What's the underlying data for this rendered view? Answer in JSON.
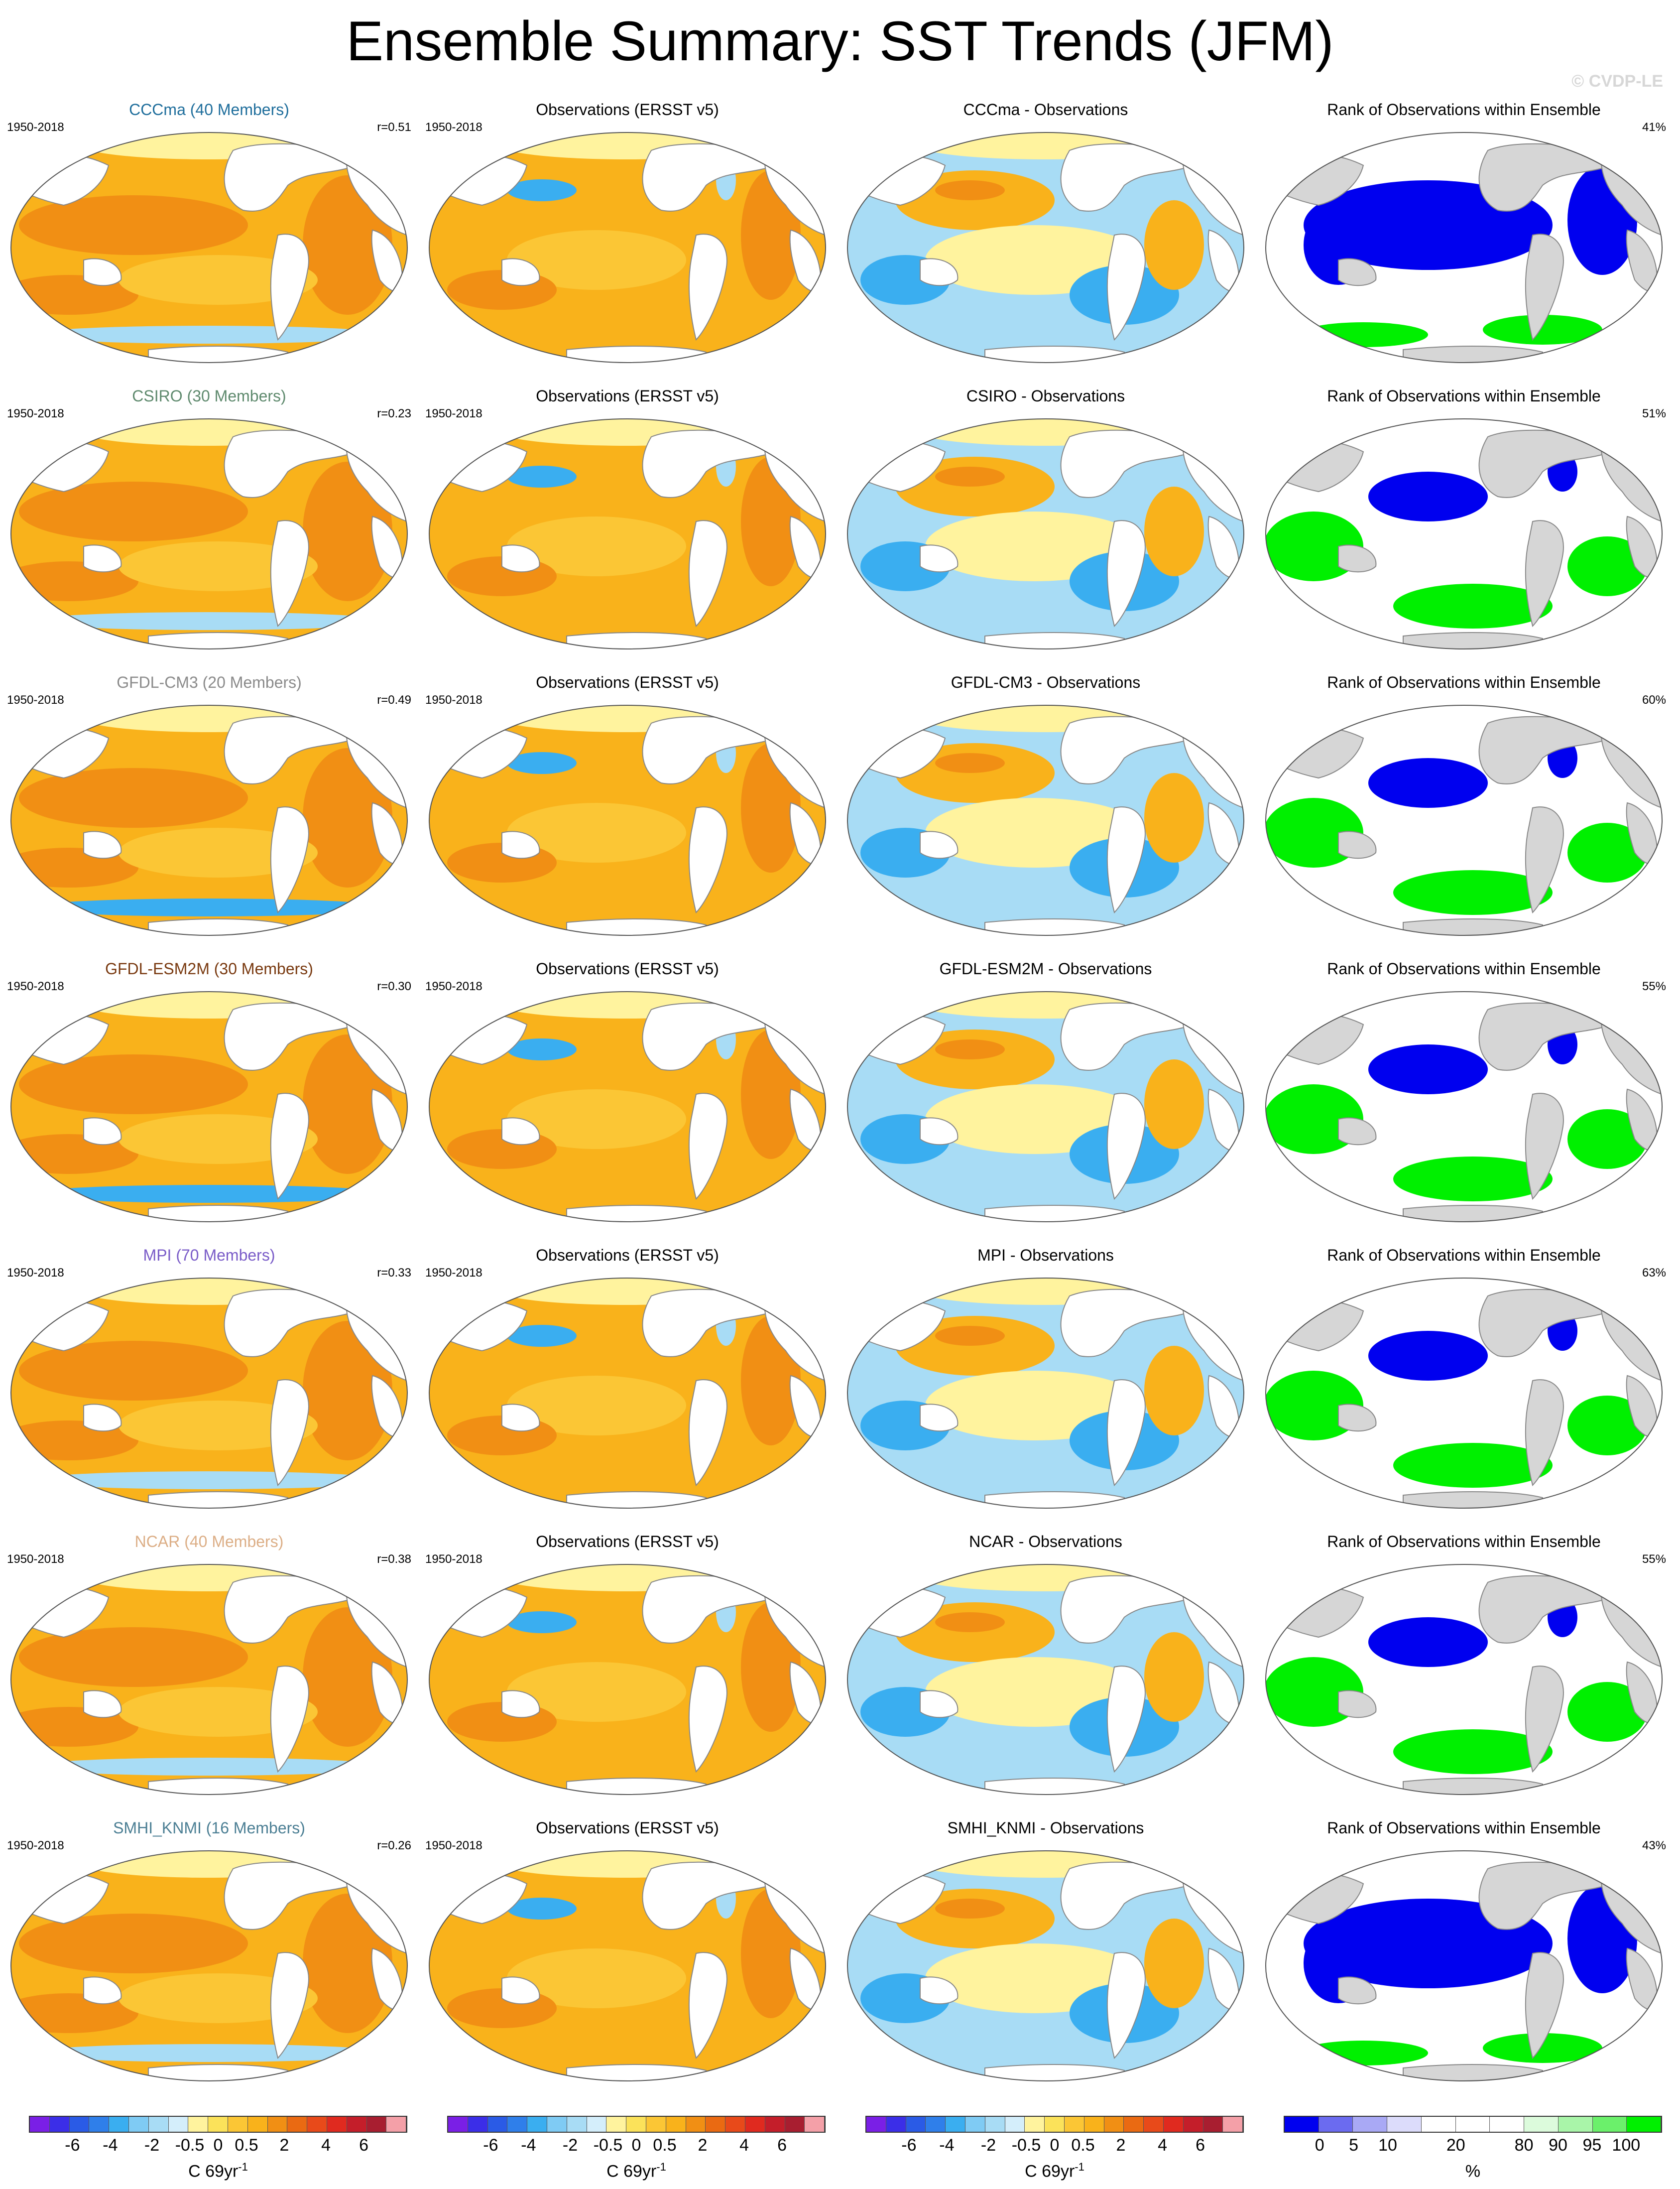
{
  "title": "Ensemble Summary: SST Trends (JFM)",
  "watermark": "© CVDP-LE",
  "colors": {
    "pos_main": "#f9b21b",
    "pos_mid": "#fbc635",
    "pos_deep": "#f18f14",
    "pale_yellow": "#fff39e",
    "neg_light": "#a8dcf5",
    "neg_mid": "#3aaef0",
    "neg_deep": "#2a5be6",
    "rank_low": "#0000ef",
    "rank_high": "#00f000",
    "rank_mid": "#ffffff",
    "land_gray": "#d6d6d6"
  },
  "rows": [
    {
      "model": "CCCma (40 Members)",
      "model_color": "#1f6e9c",
      "period": "1950-2018",
      "r": "r=0.51",
      "obs_title": "Observations (ERSST v5)",
      "obs_period": "1950-2018",
      "diff_title": "CCCma - Observations",
      "rank_title": "Rank of Observations within Ensemble",
      "rank_pct": "41%"
    },
    {
      "model": "CSIRO (30 Members)",
      "model_color": "#5f8a6e",
      "period": "1950-2018",
      "r": "r=0.23",
      "obs_title": "Observations (ERSST v5)",
      "obs_period": "1950-2018",
      "diff_title": "CSIRO - Observations",
      "rank_title": "Rank of Observations within Ensemble",
      "rank_pct": "51%"
    },
    {
      "model": "GFDL-CM3 (20 Members)",
      "model_color": "#8a8a8a",
      "period": "1950-2018",
      "r": "r=0.49",
      "obs_title": "Observations (ERSST v5)",
      "obs_period": "1950-2018",
      "diff_title": "GFDL-CM3 - Observations",
      "rank_title": "Rank of Observations within Ensemble",
      "rank_pct": "60%"
    },
    {
      "model": "GFDL-ESM2M (30 Members)",
      "model_color": "#7a3b12",
      "period": "1950-2018",
      "r": "r=0.30",
      "obs_title": "Observations (ERSST v5)",
      "obs_period": "1950-2018",
      "diff_title": "GFDL-ESM2M - Observations",
      "rank_title": "Rank of Observations within Ensemble",
      "rank_pct": "55%"
    },
    {
      "model": "MPI (70 Members)",
      "model_color": "#7a5cc8",
      "period": "1950-2018",
      "r": "r=0.33",
      "obs_title": "Observations (ERSST v5)",
      "obs_period": "1950-2018",
      "diff_title": "MPI - Observations",
      "rank_title": "Rank of Observations within Ensemble",
      "rank_pct": "63%"
    },
    {
      "model": "NCAR (40 Members)",
      "model_color": "#dcae86",
      "period": "1950-2018",
      "r": "r=0.38",
      "obs_title": "Observations (ERSST v5)",
      "obs_period": "1950-2018",
      "diff_title": "NCAR - Observations",
      "rank_title": "Rank of Observations within Ensemble",
      "rank_pct": "55%"
    },
    {
      "model": "SMHI_KNMI (16 Members)",
      "model_color": "#4c7f94",
      "period": "1950-2018",
      "r": "r=0.26",
      "obs_title": "Observations (ERSST v5)",
      "obs_period": "1950-2018",
      "diff_title": "SMHI_KNMI - Observations",
      "rank_title": "Rank of Observations within Ensemble",
      "rank_pct": "43%"
    }
  ],
  "colorbars": [
    {
      "ticks": [
        "-6",
        "-4",
        "-2",
        "-0.5",
        "0",
        "0.5",
        "2",
        "4",
        "6"
      ],
      "unit": "C 69yr",
      "unit_sup": "-1",
      "colors": [
        "#7a1fe6",
        "#3b2ee8",
        "#2a5be6",
        "#2f7fea",
        "#3aaef0",
        "#7fcbf4",
        "#a8dcf5",
        "#d4eefb",
        "#fff39e",
        "#fbe25a",
        "#fbc635",
        "#f9b21b",
        "#f18f14",
        "#ea6a12",
        "#e84a1a",
        "#e02a1f",
        "#c41e2a",
        "#a81e30",
        "#f4a0a8"
      ]
    },
    {
      "ticks": [
        "-6",
        "-4",
        "-2",
        "-0.5",
        "0",
        "0.5",
        "2",
        "4",
        "6"
      ],
      "unit": "C 69yr",
      "unit_sup": "-1",
      "colors": [
        "#7a1fe6",
        "#3b2ee8",
        "#2a5be6",
        "#2f7fea",
        "#3aaef0",
        "#7fcbf4",
        "#a8dcf5",
        "#d4eefb",
        "#fff39e",
        "#fbe25a",
        "#fbc635",
        "#f9b21b",
        "#f18f14",
        "#ea6a12",
        "#e84a1a",
        "#e02a1f",
        "#c41e2a",
        "#a81e30",
        "#f4a0a8"
      ]
    },
    {
      "ticks": [
        "-6",
        "-4",
        "-2",
        "-0.5",
        "0",
        "0.5",
        "2",
        "4",
        "6"
      ],
      "unit": "C 69yr",
      "unit_sup": "-1",
      "colors": [
        "#7a1fe6",
        "#3b2ee8",
        "#2a5be6",
        "#2f7fea",
        "#3aaef0",
        "#7fcbf4",
        "#a8dcf5",
        "#d4eefb",
        "#fff39e",
        "#fbe25a",
        "#fbc635",
        "#f9b21b",
        "#f18f14",
        "#ea6a12",
        "#e84a1a",
        "#e02a1f",
        "#c41e2a",
        "#a81e30",
        "#f4a0a8"
      ]
    },
    {
      "ticks": [
        "0",
        "5",
        "10",
        "20",
        "80",
        "90",
        "95",
        "100"
      ],
      "unit": "%",
      "unit_sup": "",
      "colors": [
        "#0000ef",
        "#6b6bf0",
        "#a9a9f5",
        "#dcdcfb",
        "#ffffff",
        "#ffffff",
        "#ffffff",
        "#dcfbdc",
        "#a9f5a9",
        "#6bf06b",
        "#00f000"
      ]
    }
  ]
}
